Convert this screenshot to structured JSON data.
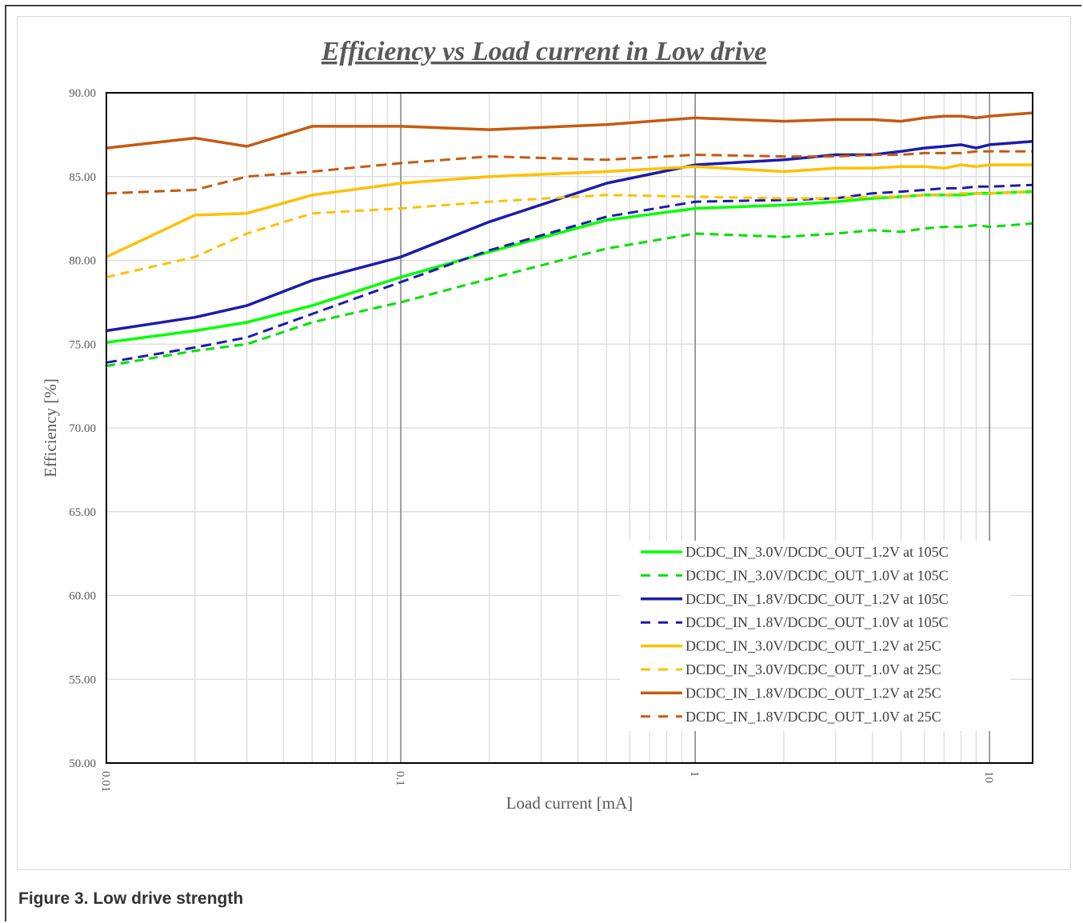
{
  "caption": "Figure 3.  Low drive strength",
  "chart_data": {
    "type": "line",
    "title": "Efficiency vs Load current in Low drive",
    "xlabel": "Load current [mA]",
    "ylabel": "Efficiency [%]",
    "x_scale": "log",
    "xlim": [
      0.01,
      14
    ],
    "ylim": [
      50,
      90
    ],
    "x_ticks": [
      0.01,
      0.1,
      1,
      10
    ],
    "x_tick_labels": [
      "0.01",
      "0.1",
      "1",
      "10"
    ],
    "y_ticks": [
      50,
      55,
      60,
      65,
      70,
      75,
      80,
      85,
      90
    ],
    "y_tick_labels": [
      "50.00",
      "55.00",
      "60.00",
      "65.00",
      "70.00",
      "75.00",
      "80.00",
      "85.00",
      "90.00"
    ],
    "grid": true,
    "legend_position": "bottom-right",
    "x": [
      0.01,
      0.02,
      0.03,
      0.05,
      0.1,
      0.2,
      0.5,
      1,
      2,
      3,
      4,
      5,
      6,
      7,
      8,
      9,
      10,
      14
    ],
    "series": [
      {
        "name": "DCDC_IN_3.0V/DCDC_OUT_1.2V at 105C",
        "color": "#00ff00",
        "dashed": false,
        "values": [
          75.1,
          75.8,
          76.3,
          77.3,
          79.0,
          80.5,
          82.4,
          83.1,
          83.3,
          83.5,
          83.7,
          83.8,
          83.9,
          83.9,
          83.9,
          84.0,
          84.0,
          84.1
        ]
      },
      {
        "name": "DCDC_IN_3.0V/DCDC_OUT_1.0V at 105C",
        "color": "#00e000",
        "dashed": true,
        "values": [
          73.7,
          74.6,
          75.0,
          76.3,
          77.5,
          78.9,
          80.7,
          81.6,
          81.4,
          81.6,
          81.8,
          81.7,
          81.9,
          82.0,
          82.0,
          82.1,
          82.0,
          82.2
        ]
      },
      {
        "name": "DCDC_IN_1.8V/DCDC_OUT_1.2V at 105C",
        "color": "#1c1caa",
        "dashed": false,
        "values": [
          75.8,
          76.6,
          77.3,
          78.8,
          80.2,
          82.3,
          84.6,
          85.7,
          86.0,
          86.3,
          86.3,
          86.5,
          86.7,
          86.8,
          86.9,
          86.7,
          86.9,
          87.1
        ]
      },
      {
        "name": "DCDC_IN_1.8V/DCDC_OUT_1.0V at 105C",
        "color": "#1c1caa",
        "dashed": true,
        "values": [
          73.9,
          74.8,
          75.4,
          76.8,
          78.7,
          80.6,
          82.6,
          83.5,
          83.6,
          83.7,
          84.0,
          84.1,
          84.2,
          84.3,
          84.3,
          84.4,
          84.4,
          84.5
        ]
      },
      {
        "name": "DCDC_IN_3.0V/DCDC_OUT_1.2V at 25C",
        "color": "#ffc000",
        "dashed": false,
        "values": [
          80.2,
          82.7,
          82.8,
          83.9,
          84.6,
          85.0,
          85.3,
          85.6,
          85.3,
          85.5,
          85.5,
          85.6,
          85.6,
          85.5,
          85.7,
          85.6,
          85.7,
          85.7
        ]
      },
      {
        "name": "DCDC_IN_3.0V/DCDC_OUT_1.0V at 25C",
        "color": "#ffc000",
        "dashed": true,
        "values": [
          79.0,
          80.2,
          81.6,
          82.8,
          83.1,
          83.5,
          83.9,
          83.8,
          83.7,
          83.7,
          83.8,
          83.8,
          83.9,
          83.9,
          84.0,
          84.0,
          84.0,
          84.1
        ]
      },
      {
        "name": "DCDC_IN_1.8V/DCDC_OUT_1.2V at 25C",
        "color": "#c55a11",
        "dashed": false,
        "values": [
          86.7,
          87.3,
          86.8,
          88.0,
          88.0,
          87.8,
          88.1,
          88.5,
          88.3,
          88.4,
          88.4,
          88.3,
          88.5,
          88.6,
          88.6,
          88.5,
          88.6,
          88.8
        ]
      },
      {
        "name": "DCDC_IN_1.8V/DCDC_OUT_1.0V at 25C",
        "color": "#c55a11",
        "dashed": true,
        "values": [
          84.0,
          84.2,
          85.0,
          85.3,
          85.8,
          86.2,
          86.0,
          86.3,
          86.2,
          86.2,
          86.3,
          86.3,
          86.4,
          86.4,
          86.4,
          86.5,
          86.5,
          86.5
        ]
      }
    ]
  }
}
